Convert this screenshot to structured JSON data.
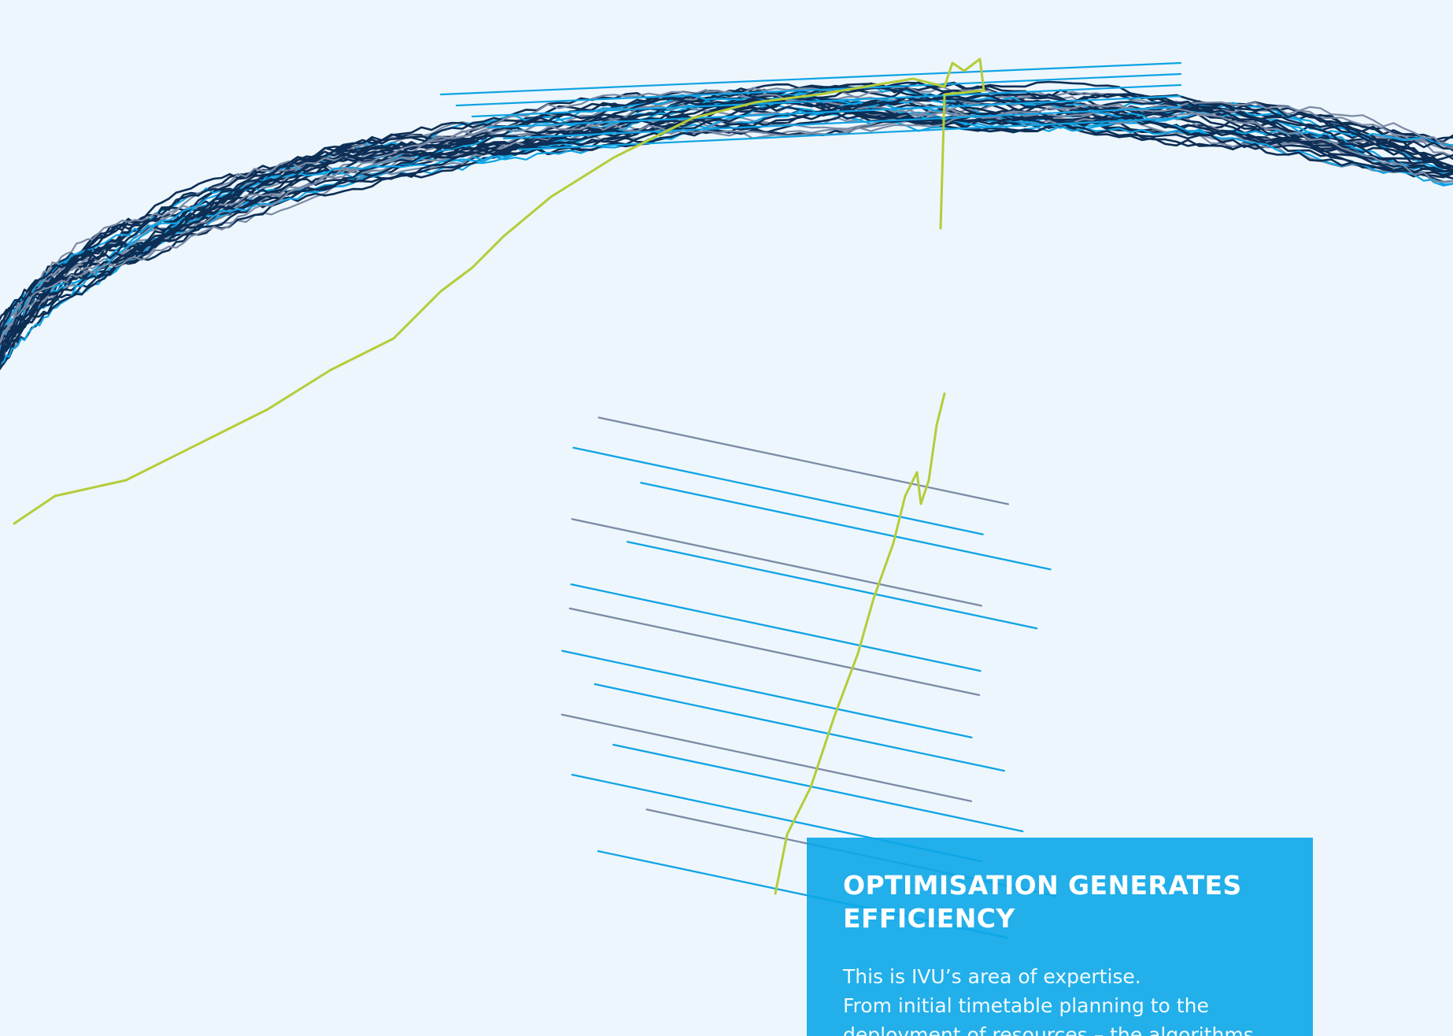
{
  "colors": {
    "background": "#edf6fc",
    "navy": "#0d2e55",
    "blue": "#0fa3e4",
    "grey_blue": "#7a8ba6",
    "lime": "#b5cc3a",
    "box": "#0ba7e8"
  },
  "infobox": {
    "title": "OPTIMISATION GENERATES EFFICIENCY",
    "body_lines": [
      "This is IVU’s area of expertise.",
      "From initial timetable planning to the",
      "deployment of resources – the algorithms"
    ]
  }
}
